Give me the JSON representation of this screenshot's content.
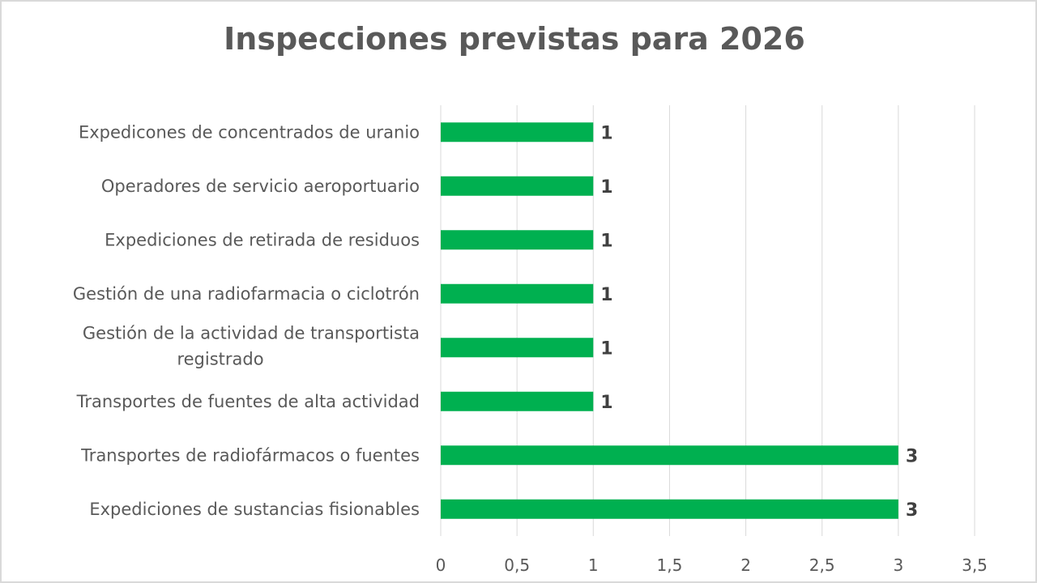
{
  "chart_data": {
    "type": "bar",
    "orientation": "horizontal",
    "title": "Inspecciones previstas para 2026",
    "categories": [
      "Expedicones de concentrados de uranio",
      "Operadores de servicio aeroportuario",
      "Expediciones de retirada de residuos",
      "Gestión de una radiofarmacia o ciclotrón",
      "Gestión de la actividad de transportista registrado",
      "Transportes de fuentes de alta actividad",
      "Transportes de radiofármacos o fuentes",
      "Expediciones de sustancias fisionables"
    ],
    "category_lines": [
      [
        "Expedicones de concentrados de uranio"
      ],
      [
        "Operadores de servicio aeroportuario"
      ],
      [
        "Expediciones de retirada de residuos"
      ],
      [
        "Gestión de una radiofarmacia o ciclotrón"
      ],
      [
        "Gestión de la actividad de transportista",
        "registrado"
      ],
      [
        "Transportes de fuentes de alta actividad"
      ],
      [
        "Transportes de radiofármacos o fuentes"
      ],
      [
        "Expediciones de sustancias fisionables"
      ]
    ],
    "values": [
      1,
      1,
      1,
      1,
      1,
      1,
      3,
      3
    ],
    "data_labels": [
      "1",
      "1",
      "1",
      "1",
      "1",
      "1",
      "3",
      "3"
    ],
    "xlim": [
      0,
      3.5
    ],
    "x_ticks": [
      "0",
      "0,5",
      "1",
      "1,5",
      "2",
      "2,5",
      "3",
      "3,5"
    ],
    "x_tick_values": [
      0,
      0.5,
      1,
      1.5,
      2,
      2.5,
      3,
      3.5
    ],
    "grid": "vertical",
    "legend": "none",
    "colors": {
      "bar": "#00b050",
      "grid": "#d9d9d9",
      "text": "#595959",
      "data_label": "#404040"
    }
  }
}
